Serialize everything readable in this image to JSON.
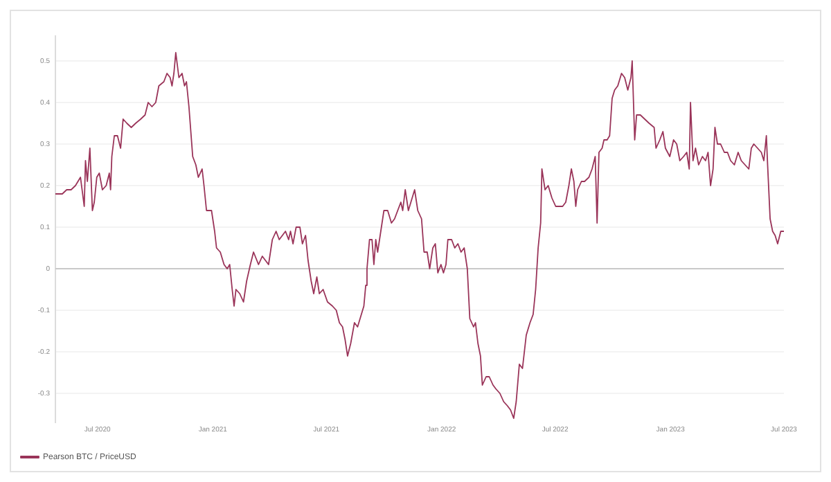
{
  "chart_data": {
    "type": "line",
    "x": [
      "2020-04-25",
      "2020-05-06",
      "2020-05-13",
      "2020-05-20",
      "2020-05-27",
      "2020-06-04",
      "2020-06-10",
      "2020-06-12",
      "2020-06-15",
      "2020-06-19",
      "2020-06-23",
      "2020-06-26",
      "2020-06-30",
      "2020-07-04",
      "2020-07-09",
      "2020-07-15",
      "2020-07-20",
      "2020-07-22",
      "2020-07-24",
      "2020-07-28",
      "2020-08-02",
      "2020-08-07",
      "2020-08-11",
      "2020-08-17",
      "2020-08-24",
      "2020-08-31",
      "2020-09-08",
      "2020-09-15",
      "2020-09-20",
      "2020-09-26",
      "2020-10-02",
      "2020-10-07",
      "2020-10-15",
      "2020-10-20",
      "2020-10-25",
      "2020-10-28",
      "2020-10-31",
      "2020-11-03",
      "2020-11-08",
      "2020-11-13",
      "2020-11-17",
      "2020-11-20",
      "2020-11-24",
      "2020-11-30",
      "2020-12-05",
      "2020-12-09",
      "2020-12-15",
      "2020-12-18",
      "2020-12-22",
      "2020-12-30",
      "2021-01-04",
      "2021-01-07",
      "2021-01-13",
      "2021-01-19",
      "2021-01-24",
      "2021-01-28",
      "2021-02-01",
      "2021-02-04",
      "2021-02-07",
      "2021-02-13",
      "2021-02-19",
      "2021-02-24",
      "2021-03-02",
      "2021-03-07",
      "2021-03-15",
      "2021-03-21",
      "2021-03-26",
      "2021-03-31",
      "2021-04-06",
      "2021-04-12",
      "2021-04-17",
      "2021-04-22",
      "2021-04-27",
      "2021-05-02",
      "2021-05-05",
      "2021-05-09",
      "2021-05-14",
      "2021-05-20",
      "2021-05-24",
      "2021-05-29",
      "2021-06-02",
      "2021-06-07",
      "2021-06-11",
      "2021-06-16",
      "2021-06-20",
      "2021-06-26",
      "2021-07-03",
      "2021-07-11",
      "2021-07-17",
      "2021-07-22",
      "2021-07-27",
      "2021-07-31",
      "2021-08-04",
      "2021-08-09",
      "2021-08-15",
      "2021-08-20",
      "2021-08-26",
      "2021-08-30",
      "2021-09-02",
      "2021-09-04",
      "2021-09-08",
      "2021-09-12",
      "2021-09-15",
      "2021-09-18",
      "2021-09-21",
      "2021-09-26",
      "2021-10-01",
      "2021-10-07",
      "2021-10-13",
      "2021-10-18",
      "2021-10-23",
      "2021-10-28",
      "2021-10-31",
      "2021-11-04",
      "2021-11-09",
      "2021-11-13",
      "2021-11-19",
      "2021-11-24",
      "2021-11-30",
      "2021-12-04",
      "2021-12-09",
      "2021-12-13",
      "2021-12-18",
      "2021-12-22",
      "2021-12-26",
      "2021-12-31",
      "2022-01-04",
      "2022-01-08",
      "2022-01-11",
      "2022-01-17",
      "2022-01-22",
      "2022-01-27",
      "2022-02-01",
      "2022-02-06",
      "2022-02-11",
      "2022-02-15",
      "2022-02-21",
      "2022-02-24",
      "2022-02-28",
      "2022-03-04",
      "2022-03-07",
      "2022-03-13",
      "2022-03-18",
      "2022-03-24",
      "2022-03-29",
      "2022-04-04",
      "2022-04-10",
      "2022-04-16",
      "2022-04-21",
      "2022-04-26",
      "2022-04-30",
      "2022-05-05",
      "2022-05-10",
      "2022-05-16",
      "2022-05-22",
      "2022-05-27",
      "2022-05-31",
      "2022-06-02",
      "2022-06-04",
      "2022-06-08",
      "2022-06-10",
      "2022-06-15",
      "2022-06-20",
      "2022-06-26",
      "2022-07-02",
      "2022-07-07",
      "2022-07-13",
      "2022-07-18",
      "2022-07-23",
      "2022-07-27",
      "2022-07-31",
      "2022-08-03",
      "2022-08-06",
      "2022-08-12",
      "2022-08-17",
      "2022-08-24",
      "2022-08-29",
      "2022-09-03",
      "2022-09-06",
      "2022-09-09",
      "2022-09-14",
      "2022-09-17",
      "2022-09-22",
      "2022-09-26",
      "2022-09-30",
      "2022-10-04",
      "2022-10-09",
      "2022-10-15",
      "2022-10-20",
      "2022-10-25",
      "2022-10-30",
      "2022-11-01",
      "2022-11-05",
      "2022-11-08",
      "2022-11-14",
      "2022-11-21",
      "2022-11-28",
      "2022-12-06",
      "2022-12-09",
      "2022-12-15",
      "2022-12-20",
      "2022-12-24",
      "2022-12-31",
      "2023-01-06",
      "2023-01-11",
      "2023-01-16",
      "2023-01-22",
      "2023-01-27",
      "2023-01-31",
      "2023-02-02",
      "2023-02-06",
      "2023-02-10",
      "2023-02-15",
      "2023-02-21",
      "2023-02-26",
      "2023-03-02",
      "2023-03-06",
      "2023-03-10",
      "2023-03-13",
      "2023-03-17",
      "2023-03-22",
      "2023-03-28",
      "2023-04-02",
      "2023-04-07",
      "2023-04-13",
      "2023-04-19",
      "2023-04-24",
      "2023-04-30",
      "2023-05-06",
      "2023-05-10",
      "2023-05-14",
      "2023-05-20",
      "2023-05-26",
      "2023-05-30",
      "2023-06-03",
      "2023-06-05",
      "2023-06-09",
      "2023-06-13",
      "2023-06-17",
      "2023-06-21",
      "2023-06-26",
      "2023-07-01"
    ],
    "series": [
      {
        "name": "Pearson BTC / PriceUSD",
        "color": "#9a3459",
        "values": [
          0.18,
          0.18,
          0.19,
          0.19,
          0.2,
          0.22,
          0.15,
          0.26,
          0.21,
          0.29,
          0.14,
          0.16,
          0.22,
          0.23,
          0.19,
          0.2,
          0.23,
          0.19,
          0.27,
          0.32,
          0.32,
          0.29,
          0.36,
          0.35,
          0.34,
          0.35,
          0.36,
          0.37,
          0.4,
          0.39,
          0.4,
          0.44,
          0.45,
          0.47,
          0.46,
          0.44,
          0.47,
          0.52,
          0.46,
          0.47,
          0.44,
          0.45,
          0.39,
          0.27,
          0.25,
          0.22,
          0.24,
          0.2,
          0.14,
          0.14,
          0.09,
          0.05,
          0.04,
          0.01,
          0.0,
          0.01,
          -0.05,
          -0.09,
          -0.05,
          -0.06,
          -0.08,
          -0.03,
          0.01,
          0.04,
          0.01,
          0.03,
          0.02,
          0.01,
          0.07,
          0.09,
          0.07,
          0.08,
          0.09,
          0.07,
          0.09,
          0.06,
          0.1,
          0.1,
          0.06,
          0.08,
          0.02,
          -0.03,
          -0.06,
          -0.02,
          -0.06,
          -0.05,
          -0.08,
          -0.09,
          -0.1,
          -0.13,
          -0.14,
          -0.17,
          -0.21,
          -0.18,
          -0.13,
          -0.14,
          -0.11,
          -0.09,
          -0.04,
          0.0,
          0.07,
          0.07,
          0.01,
          0.07,
          0.04,
          0.09,
          0.14,
          0.14,
          0.11,
          0.12,
          0.14,
          0.16,
          0.14,
          0.19,
          0.14,
          0.16,
          0.19,
          0.14,
          0.12,
          0.04,
          0.04,
          0.0,
          0.05,
          0.06,
          -0.01,
          0.01,
          -0.01,
          0.01,
          0.07,
          0.07,
          0.05,
          0.06,
          0.04,
          0.05,
          0.0,
          -0.12,
          -0.14,
          -0.13,
          -0.18,
          -0.21,
          -0.28,
          -0.26,
          -0.26,
          -0.28,
          -0.29,
          -0.3,
          -0.32,
          -0.33,
          -0.34,
          -0.36,
          -0.32,
          -0.23,
          -0.24,
          -0.16,
          -0.13,
          -0.11,
          -0.05,
          0.0,
          0.05,
          0.11,
          0.24,
          0.19,
          0.2,
          0.17,
          0.15,
          0.15,
          0.15,
          0.16,
          0.2,
          0.24,
          0.21,
          0.15,
          0.19,
          0.21,
          0.21,
          0.22,
          0.24,
          0.27,
          0.11,
          0.28,
          0.29,
          0.31,
          0.31,
          0.32,
          0.41,
          0.43,
          0.44,
          0.47,
          0.46,
          0.43,
          0.46,
          0.5,
          0.31,
          0.37,
          0.37,
          0.36,
          0.35,
          0.34,
          0.29,
          0.31,
          0.33,
          0.29,
          0.27,
          0.31,
          0.3,
          0.26,
          0.27,
          0.28,
          0.24,
          0.4,
          0.26,
          0.29,
          0.25,
          0.27,
          0.26,
          0.28,
          0.2,
          0.24,
          0.34,
          0.3,
          0.3,
          0.28,
          0.28,
          0.26,
          0.25,
          0.28,
          0.26,
          0.25,
          0.24,
          0.29,
          0.3,
          0.29,
          0.28,
          0.26,
          0.32,
          0.25,
          0.12,
          0.09,
          0.08,
          0.06,
          0.09,
          0.09
        ]
      }
    ],
    "xlim": [
      "2020-04-25",
      "2023-07-01"
    ],
    "xticks": [
      {
        "value": "2020-07-01",
        "label": "Jul 2020"
      },
      {
        "value": "2021-01-01",
        "label": "Jan 2021"
      },
      {
        "value": "2021-07-01",
        "label": "Jul 2021"
      },
      {
        "value": "2022-01-01",
        "label": "Jan 2022"
      },
      {
        "value": "2022-07-01",
        "label": "Jul 2022"
      },
      {
        "value": "2023-01-01",
        "label": "Jan 2023"
      },
      {
        "value": "2023-07-01",
        "label": "Jul 2023"
      }
    ],
    "ylim": [
      -0.37,
      0.56
    ],
    "yticks": [
      -0.3,
      -0.2,
      -0.1,
      0,
      0.1,
      0.2,
      0.3,
      0.4,
      0.5
    ],
    "grid": "y",
    "ref_lines": [
      {
        "axis": "y",
        "value": 0,
        "color": "#c9c9c9"
      }
    ],
    "legend": "bottom left"
  }
}
